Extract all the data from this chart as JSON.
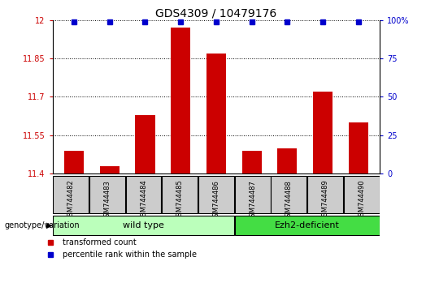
{
  "title": "GDS4309 / 10479176",
  "samples": [
    "GSM744482",
    "GSM744483",
    "GSM744484",
    "GSM744485",
    "GSM744486",
    "GSM744487",
    "GSM744488",
    "GSM744489",
    "GSM744490"
  ],
  "transformed_counts": [
    11.49,
    11.43,
    11.63,
    11.97,
    11.87,
    11.49,
    11.5,
    11.72,
    11.6
  ],
  "percentile_ranks": [
    99,
    99,
    99,
    99,
    99,
    99,
    99,
    99,
    99
  ],
  "ylim_left": [
    11.4,
    12.0
  ],
  "yticks_left": [
    11.4,
    11.55,
    11.7,
    11.85,
    12.0
  ],
  "ytick_labels_left": [
    "11.4",
    "11.55",
    "11.7",
    "11.85",
    "12"
  ],
  "ylim_right": [
    0,
    100
  ],
  "yticks_right": [
    0,
    25,
    50,
    75,
    100
  ],
  "ytick_labels_right": [
    "0",
    "25",
    "50",
    "75",
    "100%"
  ],
  "bar_color": "#cc0000",
  "marker_color": "#0000cc",
  "left_tick_color": "#cc0000",
  "right_tick_color": "#0000cc",
  "grid_color": "#000000",
  "wild_type_samples": [
    0,
    1,
    2,
    3,
    4
  ],
  "ezh2_samples": [
    5,
    6,
    7,
    8
  ],
  "wild_type_label": "wild type",
  "ezh2_label": "Ezh2-deficient",
  "group_box_color_wt": "#bbffbb",
  "group_box_color_ezh2": "#44dd44",
  "group_row_bg": "#cccccc",
  "legend_red_label": "transformed count",
  "legend_blue_label": "percentile rank within the sample",
  "genotype_label": "genotype/variation",
  "bar_width": 0.55,
  "title_fontsize": 10,
  "tick_fontsize": 7,
  "sample_fontsize": 6,
  "group_fontsize": 8,
  "legend_fontsize": 7
}
